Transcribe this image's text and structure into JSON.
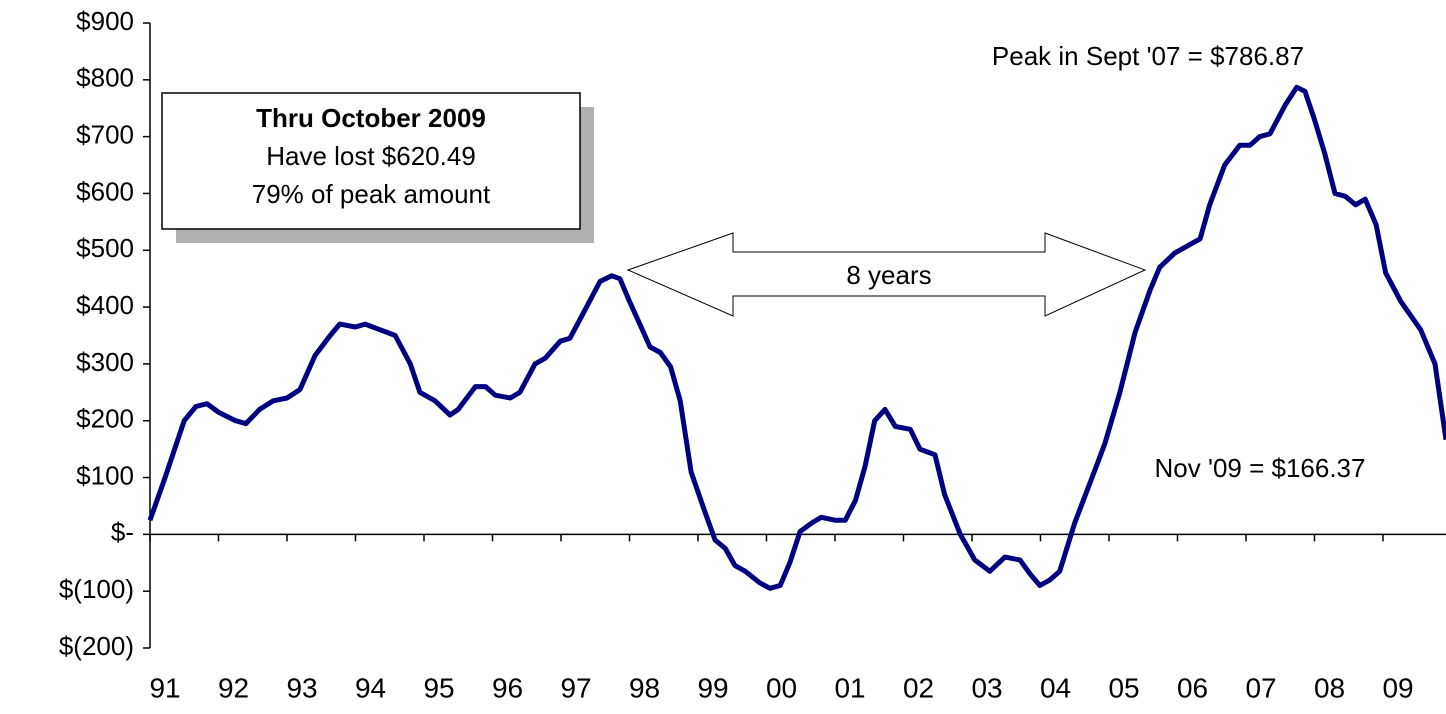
{
  "chart_data": {
    "type": "line",
    "x": [
      1991.0,
      1991.22,
      1991.5,
      1991.67,
      1991.83,
      1992.0,
      1992.25,
      1992.4,
      1992.6,
      1992.8,
      1993.0,
      1993.19,
      1993.41,
      1993.63,
      1993.77,
      1994.0,
      1994.14,
      1994.36,
      1994.58,
      1994.8,
      1994.94,
      1995.16,
      1995.38,
      1995.5,
      1995.75,
      1995.9,
      1996.04,
      1996.26,
      1996.4,
      1996.62,
      1996.77,
      1996.99,
      1997.13,
      1997.35,
      1997.57,
      1997.74,
      1997.86,
      1998.0,
      1998.15,
      1998.3,
      1998.45,
      1998.6,
      1998.74,
      1998.9,
      1999.1,
      1999.25,
      1999.4,
      1999.54,
      1999.69,
      1999.9,
      2000.05,
      2000.2,
      2000.34,
      2000.49,
      2000.66,
      2000.8,
      2001.0,
      2001.15,
      2001.3,
      2001.44,
      2001.58,
      2001.73,
      2001.88,
      2002.1,
      2002.24,
      2002.46,
      2002.6,
      2002.83,
      2003.04,
      2003.26,
      2003.48,
      2003.7,
      2003.85,
      2003.99,
      2004.14,
      2004.28,
      2004.5,
      2004.8,
      2004.94,
      2005.16,
      2005.38,
      2005.6,
      2005.74,
      2005.96,
      2006.18,
      2006.33,
      2006.47,
      2006.69,
      2006.91,
      2007.06,
      2007.2,
      2007.35,
      2007.57,
      2007.74,
      2007.86,
      2008.0,
      2008.15,
      2008.3,
      2008.45,
      2008.6,
      2008.74,
      2008.9,
      2009.04,
      2009.26,
      2009.55,
      2009.76,
      2009.92
    ],
    "values": [
      25,
      100,
      200,
      225,
      230,
      215,
      200,
      195,
      220,
      235,
      240,
      255,
      315,
      350,
      370,
      365,
      370,
      360,
      350,
      300,
      250,
      235,
      210,
      220,
      260,
      260,
      245,
      240,
      250,
      300,
      310,
      340,
      345,
      395,
      445,
      455,
      450,
      410,
      370,
      330,
      320,
      295,
      235,
      110,
      40,
      -10,
      -25,
      -55,
      -65,
      -85,
      -95,
      -90,
      -50,
      5,
      20,
      30,
      25,
      25,
      60,
      120,
      200,
      220,
      190,
      185,
      150,
      140,
      70,
      0,
      -45,
      -65,
      -40,
      -45,
      -70,
      -90,
      -80,
      -65,
      20,
      115,
      160,
      250,
      355,
      430,
      470,
      495,
      510,
      520,
      580,
      650,
      685,
      685,
      700,
      705,
      755,
      786.87,
      780,
      730,
      670,
      600,
      595,
      580,
      590,
      545,
      460,
      410,
      360,
      300,
      166.37
    ],
    "color": "#000080",
    "xlim": [
      1991,
      2009.92
    ],
    "xticks": [
      {
        "value": 1991,
        "label": "91"
      },
      {
        "value": 1992,
        "label": "92"
      },
      {
        "value": 1993,
        "label": "93"
      },
      {
        "value": 1994,
        "label": "94"
      },
      {
        "value": 1995,
        "label": "95"
      },
      {
        "value": 1996,
        "label": "96"
      },
      {
        "value": 1997,
        "label": "97"
      },
      {
        "value": 1998,
        "label": "98"
      },
      {
        "value": 1999,
        "label": "99"
      },
      {
        "value": 2000,
        "label": "00"
      },
      {
        "value": 2001,
        "label": "01"
      },
      {
        "value": 2002,
        "label": "02"
      },
      {
        "value": 2003,
        "label": "03"
      },
      {
        "value": 2004,
        "label": "04"
      },
      {
        "value": 2005,
        "label": "05"
      },
      {
        "value": 2006,
        "label": "06"
      },
      {
        "value": 2007,
        "label": "07"
      },
      {
        "value": 2008,
        "label": "08"
      },
      {
        "value": 2009,
        "label": "09"
      }
    ],
    "ylim": [
      -200,
      900
    ],
    "yticks": [
      {
        "value": -200,
        "label": "$(200)"
      },
      {
        "value": -100,
        "label": "$(100)"
      },
      {
        "value": 0,
        "label": "$-"
      },
      {
        "value": 100,
        "label": "$100"
      },
      {
        "value": 200,
        "label": "$200"
      },
      {
        "value": 300,
        "label": "$300"
      },
      {
        "value": 400,
        "label": "$400"
      },
      {
        "value": 500,
        "label": "$500"
      },
      {
        "value": 600,
        "label": "$600"
      },
      {
        "value": 700,
        "label": "$700"
      },
      {
        "value": 800,
        "label": "$800"
      },
      {
        "value": 900,
        "label": "$900"
      }
    ],
    "box": {
      "title": "Thru October 2009",
      "lines": [
        "Have lost $620.49",
        "79% of peak amount"
      ]
    },
    "arrow_label": "8 years",
    "peak_label": "Peak in Sept '07 = $786.87",
    "end_label": "Nov  '09 = $166.37"
  }
}
